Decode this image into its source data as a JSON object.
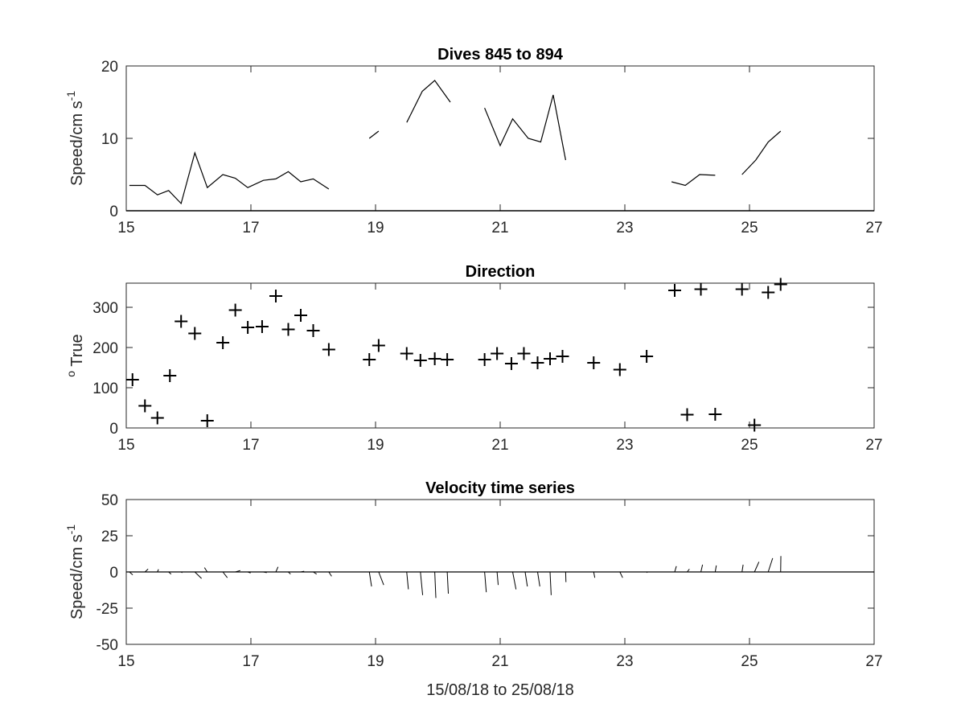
{
  "chart_data": [
    {
      "type": "line",
      "title": "Dives 845 to 894",
      "ylabel": "Speed/cm s",
      "ylabel_sup": "-1",
      "xlim": [
        15,
        27
      ],
      "ylim": [
        0,
        20
      ],
      "xticks": [
        "15",
        "17",
        "19",
        "21",
        "23",
        "25",
        "27"
      ],
      "yticks": [
        "0",
        "10",
        "20"
      ],
      "series": [
        {
          "x": [
            15.05,
            15.3,
            15.5,
            15.68,
            15.88,
            16.1,
            16.3,
            16.55,
            16.75,
            16.95,
            17.2,
            17.4,
            17.6,
            17.8,
            18.0,
            18.25
          ],
          "y": [
            3.5,
            3.5,
            2.2,
            2.8,
            1.0,
            8.0,
            3.2,
            5.0,
            4.5,
            3.2,
            4.2,
            4.4,
            5.4,
            4.0,
            4.4,
            3.0
          ]
        },
        {
          "x": [
            18.9,
            19.05
          ],
          "y": [
            10.0,
            11.0
          ]
        },
        {
          "x": [
            19.5,
            19.75,
            19.95,
            20.2
          ],
          "y": [
            12.2,
            16.5,
            18.0,
            15.0
          ]
        },
        {
          "x": [
            20.75,
            21.0,
            21.2,
            21.45,
            21.65,
            21.85,
            22.05
          ],
          "y": [
            14.2,
            9.0,
            12.7,
            10.0,
            9.5,
            16.0,
            7.0
          ]
        },
        {
          "x": [
            23.75,
            23.97,
            24.2,
            24.45
          ],
          "y": [
            4.0,
            3.5,
            5.0,
            4.9
          ]
        },
        {
          "x": [
            24.88,
            25.1,
            25.3,
            25.5
          ],
          "y": [
            5.0,
            7.0,
            9.5,
            11.0
          ]
        }
      ]
    },
    {
      "type": "scatter",
      "title": "Direction",
      "ylabel": "True",
      "ylabel_pre": "o",
      "marker": "+",
      "xlim": [
        15,
        27
      ],
      "ylim": [
        0,
        360
      ],
      "xticks": [
        "15",
        "17",
        "19",
        "21",
        "23",
        "25",
        "27"
      ],
      "yticks": [
        "0",
        "100",
        "200",
        "300"
      ],
      "x": [
        15.1,
        15.3,
        15.5,
        15.7,
        15.88,
        16.1,
        16.3,
        16.55,
        16.75,
        16.95,
        17.18,
        17.4,
        17.6,
        17.8,
        18.0,
        18.25,
        18.9,
        19.05,
        19.5,
        19.72,
        19.95,
        20.15,
        20.75,
        20.95,
        21.18,
        21.38,
        21.6,
        21.8,
        22.0,
        22.5,
        22.92,
        23.35,
        23.8,
        24.0,
        24.22,
        24.45,
        24.88,
        25.08,
        25.3,
        25.5
      ],
      "y": [
        120,
        55,
        25,
        130,
        265,
        235,
        18,
        212,
        293,
        250,
        252,
        328,
        245,
        280,
        242,
        195,
        170,
        205,
        185,
        168,
        172,
        170,
        170,
        185,
        160,
        185,
        162,
        172,
        178,
        162,
        145,
        178,
        342,
        33,
        345,
        34,
        345,
        7,
        337,
        357
      ]
    },
    {
      "type": "quiver",
      "title": "Velocity time series",
      "ylabel": "Speed/cm s",
      "ylabel_sup": "-1",
      "xlabel": "15/08/18 to 25/08/18",
      "xlim": [
        15,
        27
      ],
      "ylim": [
        -50,
        50
      ],
      "xticks": [
        "15",
        "17",
        "19",
        "21",
        "23",
        "25",
        "27"
      ],
      "yticks": [
        "-50",
        "-25",
        "0",
        "25",
        "50"
      ],
      "x": [
        15.05,
        15.3,
        15.5,
        15.68,
        15.88,
        16.1,
        16.3,
        16.55,
        16.75,
        16.95,
        17.2,
        17.4,
        17.6,
        17.8,
        18.0,
        18.25,
        18.9,
        19.05,
        19.5,
        19.72,
        19.95,
        20.15,
        20.75,
        20.95,
        21.2,
        21.4,
        21.6,
        21.8,
        22.05,
        22.5,
        22.92,
        23.35,
        23.8,
        24.0,
        24.22,
        24.45,
        24.88,
        25.08,
        25.3,
        25.5
      ],
      "u": [
        3.0,
        2.8,
        1.0,
        2.2,
        1.0,
        6.0,
        -2.5,
        4.0,
        4.5,
        2.5,
        3.0,
        2.0,
        2.0,
        3.0,
        3.0,
        2.5,
        2.0,
        4.5,
        1.5,
        2.0,
        1.0,
        1.0,
        1.5,
        1.0,
        3.0,
        2.0,
        2.0,
        1.0,
        0.3,
        1.0,
        2.5,
        0.5,
        1.5,
        2.0,
        1.5,
        1.0,
        1.0,
        4.0,
        4.0,
        0.2
      ],
      "v": [
        -2.0,
        2.0,
        1.8,
        -1.5,
        -0.5,
        -4.5,
        3.0,
        -4.0,
        1.0,
        -0.7,
        -0.5,
        3.5,
        -1.5,
        0.5,
        -1.5,
        -3.0,
        -10.0,
        -9.0,
        -12.0,
        -16.0,
        -18.0,
        -15.0,
        -14.0,
        -9.0,
        -12.0,
        -10.0,
        -10.0,
        -16.0,
        -7.0,
        -4.0,
        -4.0,
        -0.5,
        4.0,
        2.0,
        5.0,
        4.5,
        5.0,
        7.0,
        9.5,
        11.0
      ]
    }
  ]
}
